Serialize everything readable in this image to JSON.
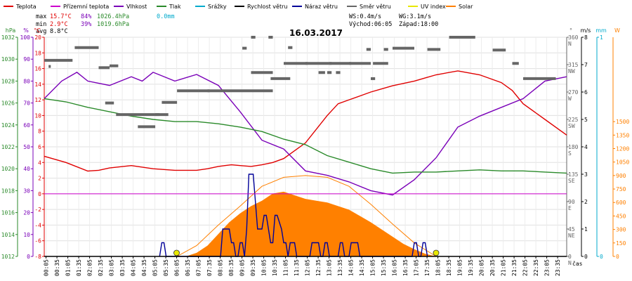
{
  "chart_data": {
    "type": "line",
    "title": "16.03.2017",
    "legend": [
      {
        "label": "Teplota",
        "color": "#e00000"
      },
      {
        "label": "Přízemní teplota",
        "color": "#cc00cc"
      },
      {
        "label": "Vlhkost",
        "color": "#7a00b8"
      },
      {
        "label": "Tlak",
        "color": "#2a8a2a"
      },
      {
        "label": "Srážky",
        "color": "#00aacc"
      },
      {
        "label": "Rychlost větru",
        "color": "#000000"
      },
      {
        "label": "Náraz větru",
        "color": "#000099"
      },
      {
        "label": "Směr větru",
        "color": "#666666"
      },
      {
        "label": "UV index",
        "color": "#e8e800"
      },
      {
        "label": "Solar",
        "color": "#ff8000"
      }
    ],
    "stats": {
      "max": {
        "label": "max",
        "temp": "15.7°C",
        "hum": "84%",
        "press": "1026.4hPa",
        "rain": "0.0mm"
      },
      "min": {
        "label": "min",
        "temp": "2.9°C",
        "hum": "39%",
        "press": "1019.6hPa"
      },
      "avg": {
        "label": "avg",
        "temp": "8.8°C"
      },
      "ws": "WS:0.4m/s",
      "wg": "WG:3.1m/s",
      "sunrise": "Východ:06:05",
      "sunset": "Západ:18:00"
    },
    "x_ticks": [
      "00:05",
      "00:35",
      "01:05",
      "01:35",
      "02:05",
      "02:35",
      "03:05",
      "03:35",
      "04:05",
      "04:35",
      "05:05",
      "05:35",
      "06:05",
      "06:35",
      "07:05",
      "07:35",
      "08:05",
      "08:35",
      "09:05",
      "09:35",
      "10:05",
      "10:35",
      "11:05",
      "11:35",
      "12:05",
      "12:35",
      "13:05",
      "13:35",
      "14:05",
      "14:35",
      "15:05",
      "15:35",
      "16:05",
      "16:35",
      "17:05",
      "17:35",
      "18:05",
      "18:35",
      "19:05",
      "19:35",
      "20:05",
      "20:35",
      "21:05",
      "21:35",
      "22:05",
      "22:35",
      "23:05",
      "23:35"
    ],
    "xlabel": "čas",
    "axes": {
      "hpa": {
        "unit": "hPa",
        "ticks": [
          "1032",
          "1030",
          "1028",
          "1026",
          "1024",
          "1022",
          "1020",
          "1018",
          "1016",
          "1014",
          "1012"
        ],
        "color": "#2a8a2a",
        "ylim": [
          1012,
          1032
        ]
      },
      "pct": {
        "unit": "%",
        "ticks": [
          "100",
          "90",
          "80",
          "70",
          "60",
          "50",
          "40",
          "30",
          "20",
          "10",
          "0"
        ],
        "color": "#7a00b8",
        "ylim": [
          0,
          100
        ]
      },
      "degc": {
        "unit": "°C",
        "ticks": [
          "20",
          "18",
          "16",
          "14",
          "12",
          "10",
          "8",
          "6",
          "4",
          "2",
          "0",
          "-2",
          "-4",
          "-6",
          "-8"
        ],
        "color": "#e00000",
        "ylim": [
          -8,
          20
        ]
      },
      "dir": {
        "unit": "°",
        "ticks": [
          {
            "val": "360",
            "lab": "N"
          },
          {
            "val": "315",
            "lab": "NW"
          },
          {
            "val": "270",
            "lab": "W"
          },
          {
            "val": "225",
            "lab": "SW"
          },
          {
            "val": "180",
            "lab": "S"
          },
          {
            "val": "135",
            "lab": "SE"
          },
          {
            "val": "90",
            "lab": "E"
          },
          {
            "val": "45",
            "lab": "NE"
          },
          {
            "val": "0",
            "lab": "N"
          }
        ],
        "color": "#666666"
      },
      "ms": {
        "unit": "m/s",
        "ticks": [
          "8",
          "7",
          "6",
          "5",
          "4",
          "3",
          "2",
          "1",
          "0"
        ],
        "color": "#000000",
        "ylim": [
          0,
          8
        ]
      },
      "mm": {
        "unit": "mm",
        "ticks": [
          "1",
          "0"
        ],
        "color": "#00aacc"
      },
      "w": {
        "unit": "W",
        "ticks": [
          "1500",
          "1350",
          "1200",
          "1050",
          "900",
          "750",
          "600",
          "450",
          "300",
          "150",
          "0"
        ],
        "color": "#ff8000",
        "ylim": [
          0,
          1500
        ]
      }
    },
    "series": [
      {
        "name": "Teplota",
        "axis": "degc",
        "x": [
          0,
          1,
          2,
          2.5,
          3,
          4,
          5,
          6,
          6.5,
          7,
          7.5,
          8,
          8.3,
          8.6,
          9,
          9.5,
          10,
          10.5,
          11,
          12,
          13,
          13.5,
          14,
          14.5,
          15,
          16,
          17,
          17.5,
          18,
          19,
          20,
          21,
          21.5,
          22,
          23,
          24
        ],
        "y": [
          4.8,
          4,
          2.9,
          3,
          3.3,
          3.6,
          3.2,
          3,
          3,
          3,
          3.2,
          3.5,
          3.6,
          3.7,
          3.6,
          3.5,
          3.7,
          4,
          4.5,
          6.5,
          10,
          11.5,
          12,
          12.5,
          13,
          13.8,
          14.4,
          14.8,
          15.2,
          15.7,
          15.2,
          14.2,
          13.2,
          11.5,
          9.5,
          7.5
        ]
      },
      {
        "name": "Vlhkost",
        "axis": "pct",
        "x": [
          0,
          0.8,
          1.5,
          2,
          3,
          4,
          4.5,
          5,
          6,
          7,
          8,
          9,
          10,
          11,
          12,
          13,
          14,
          15,
          16,
          17,
          18,
          18.5,
          19,
          20,
          21,
          22,
          23,
          24
        ],
        "y": [
          72,
          80,
          84,
          80,
          78,
          82,
          80,
          84,
          80,
          83,
          78,
          66,
          53,
          49,
          39,
          37,
          34,
          30,
          28,
          35,
          45,
          52,
          59,
          64,
          68,
          72,
          80,
          82
        ]
      },
      {
        "name": "Tlak",
        "axis": "hpa",
        "x": [
          0,
          1,
          2,
          3,
          4,
          5,
          6,
          7,
          8,
          9,
          10,
          11,
          12,
          13,
          14,
          15,
          16,
          17,
          18,
          19,
          20,
          21,
          22,
          23,
          24
        ],
        "y": [
          1026.4,
          1026.1,
          1025.6,
          1025.2,
          1024.8,
          1024.5,
          1024.3,
          1024.3,
          1024.1,
          1023.8,
          1023.4,
          1022.7,
          1022.2,
          1021.2,
          1020.6,
          1020.0,
          1019.6,
          1019.7,
          1019.7,
          1019.8,
          1019.9,
          1019.8,
          1019.8,
          1019.7,
          1019.6
        ]
      },
      {
        "name": "Solar",
        "axis": "w",
        "x": [
          6.5,
          7,
          7.5,
          8,
          8.5,
          9,
          9.5,
          10,
          10.5,
          11,
          11.5,
          12,
          12.5,
          13,
          13.5,
          14,
          14.5,
          15,
          15.5,
          16,
          16.5,
          17,
          17.5,
          18
        ],
        "y": [
          0,
          40,
          120,
          250,
          380,
          480,
          560,
          620,
          700,
          720,
          680,
          640,
          620,
          600,
          560,
          520,
          450,
          380,
          300,
          220,
          140,
          80,
          30,
          0
        ]
      },
      {
        "name": "Solar max",
        "axis": "w",
        "x": [
          6.1,
          7,
          8,
          9,
          10,
          11,
          12,
          13,
          14,
          15,
          16,
          17,
          18
        ],
        "y": [
          0,
          120,
          350,
          560,
          780,
          880,
          900,
          880,
          780,
          580,
          360,
          150,
          0
        ]
      },
      {
        "name": "Náraz větru",
        "axis": "ms",
        "x": [
          5.3,
          5.4,
          5.5,
          5.6,
          8.1,
          8.2,
          8.3,
          8.4,
          8.5,
          8.6,
          8.7,
          8.8,
          8.9,
          9.0,
          9.1,
          9.2,
          9.3,
          9.4,
          9.5,
          9.6,
          9.7,
          9.8,
          10.0,
          10.1,
          10.2,
          10.3,
          10.4,
          10.5,
          10.6,
          10.7,
          10.9,
          11.0,
          11.1,
          11.2,
          11.3,
          11.4,
          11.5,
          11.6,
          12.2,
          12.3,
          12.4,
          12.5,
          12.6,
          12.7,
          12.8,
          12.9,
          13.0,
          13.1,
          13.5,
          13.6,
          13.7,
          13.8,
          14.0,
          14.1,
          14.2,
          14.3,
          14.4,
          14.5,
          14.6,
          14.7,
          16.9,
          17.0,
          17.1,
          17.2,
          17.3,
          17.4,
          17.5,
          17.6
        ],
        "y": [
          0,
          0.5,
          0.5,
          0,
          0,
          1,
          1,
          1,
          1,
          0.5,
          0.5,
          0,
          0,
          0.5,
          0.5,
          0,
          1,
          3,
          3,
          3,
          2,
          1,
          1,
          1.5,
          1.5,
          1,
          0.5,
          0.5,
          1.5,
          1.5,
          1,
          0.5,
          0.5,
          0,
          0.5,
          0.5,
          0.5,
          0,
          0,
          0.5,
          0.5,
          0.5,
          0.5,
          0,
          0,
          0.5,
          0.5,
          0,
          0,
          0.5,
          0.5,
          0,
          0,
          0.5,
          0.5,
          0.5,
          0.5,
          0,
          0,
          0,
          0,
          0.5,
          0.5,
          0,
          0,
          0.5,
          0.5,
          0
        ]
      },
      {
        "name": "Rychlost větru",
        "axis": "ms",
        "x": [
          0,
          24
        ],
        "y": [
          0,
          0
        ]
      }
    ],
    "wind_dir_segments": [
      {
        "t0": 0.0,
        "t1": 1.3,
        "deg": 322
      },
      {
        "t0": 0.2,
        "t1": 0.3,
        "deg": 312
      },
      {
        "t0": 1.4,
        "t1": 2.5,
        "deg": 343
      },
      {
        "t0": 2.5,
        "t1": 3.0,
        "deg": 310
      },
      {
        "t0": 3.0,
        "t1": 3.4,
        "deg": 313
      },
      {
        "t0": 2.8,
        "t1": 3.2,
        "deg": 252
      },
      {
        "t0": 3.3,
        "t1": 5.7,
        "deg": 233
      },
      {
        "t0": 4.3,
        "t1": 5.1,
        "deg": 213
      },
      {
        "t0": 5.1,
        "t1": 5.3,
        "deg": 233
      },
      {
        "t0": 5.4,
        "t1": 6.1,
        "deg": 253
      },
      {
        "t0": 6.1,
        "t1": 7.6,
        "deg": 272
      },
      {
        "t0": 7.5,
        "t1": 10.5,
        "deg": 272
      },
      {
        "t0": 9.5,
        "t1": 10.5,
        "deg": 302
      },
      {
        "t0": 10.4,
        "t1": 11.3,
        "deg": 292
      },
      {
        "t0": 11.0,
        "t1": 12.1,
        "deg": 317
      },
      {
        "t0": 12.0,
        "t1": 13.2,
        "deg": 317
      },
      {
        "t0": 13.1,
        "t1": 14.1,
        "deg": 317
      },
      {
        "t0": 14.0,
        "t1": 15.0,
        "deg": 317
      },
      {
        "t0": 15.0,
        "t1": 15.2,
        "deg": 292
      },
      {
        "t0": 15.1,
        "t1": 15.8,
        "deg": 317
      },
      {
        "t0": 16.0,
        "t1": 17.0,
        "deg": 342
      },
      {
        "t0": 17.6,
        "t1": 18.2,
        "deg": 340
      },
      {
        "t0": 18.6,
        "t1": 19.8,
        "deg": 360
      },
      {
        "t0": 20.6,
        "t1": 21.2,
        "deg": 339
      },
      {
        "t0": 21.5,
        "t1": 21.8,
        "deg": 317
      },
      {
        "t0": 22.0,
        "t1": 23.5,
        "deg": 292
      },
      {
        "t0": 9.1,
        "t1": 9.3,
        "deg": 342
      },
      {
        "t0": 9.5,
        "t1": 9.7,
        "deg": 360
      },
      {
        "t0": 10.3,
        "t1": 10.5,
        "deg": 360
      },
      {
        "t0": 11.2,
        "t1": 11.4,
        "deg": 343
      },
      {
        "t0": 14.8,
        "t1": 15.0,
        "deg": 340
      },
      {
        "t0": 15.6,
        "t1": 15.8,
        "deg": 340
      },
      {
        "t0": 12.6,
        "t1": 12.9,
        "deg": 302
      },
      {
        "t0": 13.0,
        "t1": 13.2,
        "deg": 302
      },
      {
        "t0": 13.4,
        "t1": 13.6,
        "deg": 302
      }
    ],
    "uv_markers": [
      6.08,
      18.0
    ],
    "zero_line": {
      "axis": "degc",
      "value": 0,
      "color": "#cc00cc"
    }
  }
}
